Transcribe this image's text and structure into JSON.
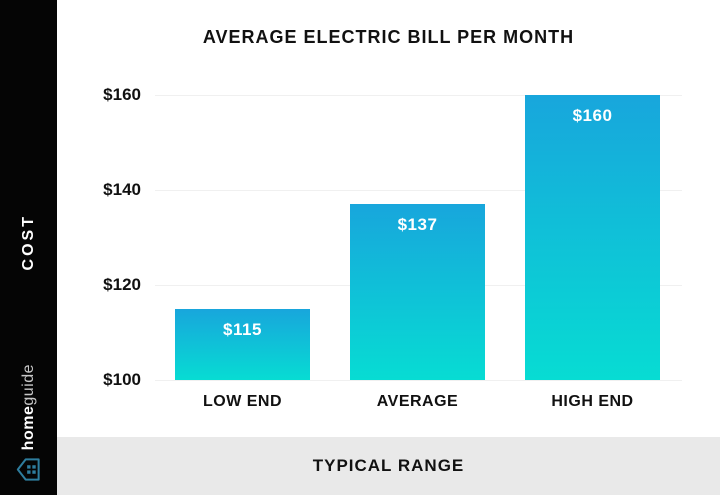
{
  "title": "AVERAGE ELECTRIC BILL PER MONTH",
  "chart_data": {
    "type": "bar",
    "title": "AVERAGE ELECTRIC BILL PER MONTH",
    "categories": [
      "LOW END",
      "AVERAGE",
      "HIGH END"
    ],
    "values": [
      115,
      137,
      160
    ],
    "bar_labels": [
      "$115",
      "$137",
      "$160"
    ],
    "xlabel": "TYPICAL RANGE",
    "ylabel": "COST",
    "ylim": [
      100,
      160
    ],
    "y_ticks": [
      {
        "value": 160,
        "label": "$160"
      },
      {
        "value": 140,
        "label": "$140"
      },
      {
        "value": 120,
        "label": "$120"
      },
      {
        "value": 100,
        "label": "$100"
      }
    ],
    "grid": true,
    "legend": false,
    "colors": {
      "bar_gradient_top": "#18A6DC",
      "bar_gradient_bottom": "#07DCD3",
      "bar_label_text": "#FFFFFF",
      "grid_line": "#F0F0F0",
      "text": "#111111"
    }
  },
  "sidebar": {
    "background": "#050505",
    "cost_label": "COST",
    "brand": {
      "name_bold": "home",
      "name_light": "guide",
      "icon": "homeguide-house-icon",
      "icon_color": "#2E7D9E"
    }
  },
  "footer": {
    "label": "TYPICAL RANGE",
    "background": "#E9E9E9"
  }
}
